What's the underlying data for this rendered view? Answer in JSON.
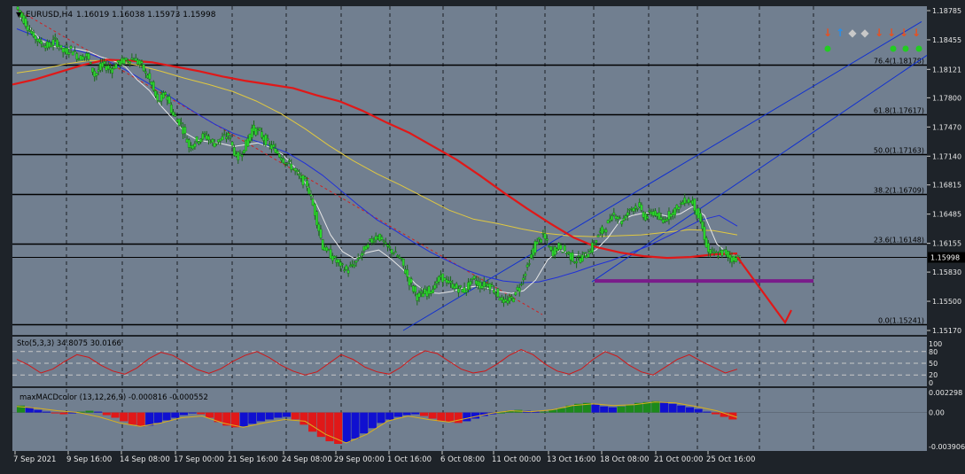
{
  "header": {
    "symbol_label": "EURUSD,H4",
    "ohlc": "1.16019 1.16038 1.15973 1.15998"
  },
  "colors": {
    "background": "#717f90",
    "candle_body": "#2bd92b",
    "ma_fast": "#e8e8e8",
    "ma_mid": "#2030d8",
    "ma_yellow": "#e0c840",
    "ma_slow": "#e01818",
    "channel": "#1030d0",
    "support": "#7a1c8a",
    "arrow": "#e01818"
  },
  "price_axis": {
    "ticks": [
      "1.18785",
      "1.18455",
      "1.18121",
      "1.17800",
      "1.17470",
      "1.17140",
      "1.16815",
      "1.16485",
      "1.16155",
      "1.15830",
      "1.15500",
      "1.15170"
    ],
    "current_price": "1.15998"
  },
  "fibonacci": [
    {
      "label": "76.4(1.18178)"
    },
    {
      "label": "61.8(1.17617)"
    },
    {
      "label": "50.0(1.17163)"
    },
    {
      "label": "38.2(1.16709)"
    },
    {
      "label": "23.6(1.16148)"
    },
    {
      "label": "0.0(1.15241)"
    }
  ],
  "time_axis": {
    "labels": [
      "7 Sep 2021",
      "9 Sep 16:00",
      "14 Sep 08:00",
      "17 Sep 00:00",
      "21 Sep 16:00",
      "24 Sep 08:00",
      "29 Sep 00:00",
      "1 Oct 16:00",
      "6 Oct 08:00",
      "11 Oct 00:00",
      "13 Oct 16:00",
      "18 Oct 08:00",
      "21 Oct 00:00",
      "25 Oct 16:00"
    ]
  },
  "stochastic": {
    "label": "Sto(5,3,3) 34.8075 30.0166",
    "ticks": [
      "100",
      "80",
      "50",
      "20",
      "0"
    ]
  },
  "macd": {
    "label": "maxMACDcolor (13,12,26,9) -0.000816 -0.000552",
    "ticks": [
      "0.002298",
      "0.00",
      "-0.003906"
    ]
  },
  "chart_data": [
    {
      "type": "candlestick",
      "title": "EURUSD,H4",
      "ohlc_last": {
        "open": 1.16019,
        "high": 1.16038,
        "low": 1.15973,
        "close": 1.15998
      },
      "ylim": [
        1.1517,
        1.18785
      ],
      "x_labels": [
        "7 Sep 2021",
        "9 Sep 16:00",
        "14 Sep 08:00",
        "17 Sep 00:00",
        "21 Sep 16:00",
        "24 Sep 08:00",
        "29 Sep 00:00",
        "1 Oct 16:00",
        "6 Oct 08:00",
        "11 Oct 00:00",
        "13 Oct 16:00",
        "18 Oct 08:00",
        "21 Oct 00:00",
        "25 Oct 16:00"
      ],
      "close_path": [
        1.1883,
        1.1868,
        1.1852,
        1.1843,
        1.1838,
        1.1845,
        1.1832,
        1.1835,
        1.1825,
        1.1828,
        1.1805,
        1.1818,
        1.1812,
        1.182,
        1.1822,
        1.1825,
        1.1815,
        1.18,
        1.1775,
        1.1785,
        1.176,
        1.175,
        1.1725,
        1.1732,
        1.1738,
        1.1728,
        1.1733,
        1.1738,
        1.1712,
        1.1722,
        1.1745,
        1.174,
        1.1728,
        1.172,
        1.171,
        1.1702,
        1.169,
        1.1682,
        1.165,
        1.1612,
        1.1602,
        1.1592,
        1.1585,
        1.1592,
        1.1605,
        1.1618,
        1.1625,
        1.1612,
        1.1605,
        1.1595,
        1.1572,
        1.1555,
        1.156,
        1.1565,
        1.1578,
        1.157,
        1.1565,
        1.1562,
        1.1575,
        1.1568,
        1.157,
        1.156,
        1.1548,
        1.1553,
        1.1568,
        1.159,
        1.1615,
        1.1625,
        1.1605,
        1.1612,
        1.1605,
        1.1596,
        1.16,
        1.1608,
        1.1625,
        1.1635,
        1.165,
        1.164,
        1.1655,
        1.1658,
        1.1645,
        1.1652,
        1.164,
        1.1648,
        1.1655,
        1.1665,
        1.1662,
        1.164,
        1.1605,
        1.1603,
        1.1606,
        1.1598,
        1.16
      ],
      "indicators": {
        "ma_fast": [
          1.1875,
          1.186,
          1.1845,
          1.1838,
          1.1836,
          1.1835,
          1.1832,
          1.1826,
          1.1822,
          1.1815,
          1.18,
          1.1788,
          1.177,
          1.1755,
          1.174,
          1.1732,
          1.173,
          1.1728,
          1.1725,
          1.1727,
          1.1729,
          1.1724,
          1.1716,
          1.1702,
          1.1682,
          1.1655,
          1.1625,
          1.1606,
          1.1598,
          1.1605,
          1.1608,
          1.1598,
          1.1586,
          1.157,
          1.156,
          1.1559,
          1.1561,
          1.1565,
          1.1567,
          1.1565,
          1.1561,
          1.1559,
          1.1562,
          1.1574,
          1.1597,
          1.1608,
          1.1603,
          1.1602,
          1.1608,
          1.1622,
          1.1641,
          1.1647,
          1.165,
          1.1649,
          1.1646,
          1.1649,
          1.1657,
          1.1647,
          1.1615,
          1.1603,
          1.16
        ],
        "ma_mid": [
          1.1858,
          1.185,
          1.1842,
          1.1835,
          1.183,
          1.1822,
          1.1812,
          1.18,
          1.1788,
          1.1775,
          1.1762,
          1.175,
          1.174,
          1.1733,
          1.1726,
          1.1718,
          1.1706,
          1.1692,
          1.1675,
          1.1658,
          1.1642,
          1.163,
          1.1617,
          1.1605,
          1.1595,
          1.1585,
          1.1578,
          1.1573,
          1.1571,
          1.1572,
          1.1577,
          1.1583,
          1.159,
          1.1596,
          1.1604,
          1.1612,
          1.1622,
          1.1632,
          1.1642,
          1.1647,
          1.1635
        ],
        "ma_yellow": [
          1.1808,
          1.1812,
          1.1818,
          1.1822,
          1.1822,
          1.1817,
          1.181,
          1.1802,
          1.1795,
          1.1787,
          1.1776,
          1.1762,
          1.1745,
          1.1726,
          1.1709,
          1.1694,
          1.1681,
          1.1667,
          1.1653,
          1.1643,
          1.1638,
          1.1632,
          1.1627,
          1.1624,
          1.1623,
          1.1624,
          1.1625,
          1.1628,
          1.1631,
          1.163,
          1.1625
        ],
        "ma_slow": [
          1.1795,
          1.1801,
          1.1809,
          1.1817,
          1.1823,
          1.1822,
          1.182,
          1.1815,
          1.181,
          1.1804,
          1.1799,
          1.1795,
          1.1791,
          1.1783,
          1.1776,
          1.1765,
          1.1752,
          1.174,
          1.1725,
          1.171,
          1.1692,
          1.1673,
          1.1655,
          1.1638,
          1.1622,
          1.1611,
          1.1605,
          1.1601,
          1.1599,
          1.16,
          1.1603,
          1.1604
        ]
      },
      "fibonacci_levels": [
        {
          "level": 76.4,
          "price": 1.18178
        },
        {
          "level": 61.8,
          "price": 1.17617
        },
        {
          "level": 50.0,
          "price": 1.17163
        },
        {
          "level": 38.2,
          "price": 1.16709
        },
        {
          "level": 23.6,
          "price": 1.16148
        },
        {
          "level": 0.0,
          "price": 1.15241
        }
      ],
      "support_level": 1.1573,
      "current_price": 1.15998
    },
    {
      "type": "line",
      "title": "Sto(5,3,3) 34.8075 30.0166",
      "ylim": [
        0,
        100
      ],
      "levels": [
        80,
        50,
        20
      ],
      "series": [
        {
          "name": "Sto(5,3,3)",
          "values": [
            60,
            45,
            25,
            35,
            55,
            72,
            65,
            45,
            30,
            22,
            38,
            62,
            78,
            70,
            52,
            34,
            24,
            36,
            55,
            70,
            80,
            65,
            45,
            30,
            20,
            28,
            50,
            72,
            60,
            40,
            28,
            22,
            40,
            65,
            82,
            75,
            55,
            35,
            25,
            30,
            48,
            70,
            85,
            72,
            48,
            30,
            22,
            35,
            60,
            80,
            68,
            45,
            28,
            20,
            40,
            60,
            72,
            55,
            40,
            25,
            34.8075
          ]
        }
      ]
    },
    {
      "type": "bar",
      "title": "maxMACDcolor (13,12,26,9) -0.000816 -0.000552",
      "ylim": [
        -0.003906,
        0.002298
      ],
      "series": [
        {
          "name": "maxMACDcolor",
          "values": [
            0.0008,
            0.0006,
            0.0003,
            0.0001,
            -0.0001,
            -0.0002,
            -0.0001,
            0.0001,
            0.0002,
            0.0001,
            -0.0003,
            -0.0006,
            -0.001,
            -0.0014,
            -0.0016,
            -0.0015,
            -0.0012,
            -0.0009,
            -0.0006,
            -0.0003,
            -0.0001,
            -0.0002,
            -0.0006,
            -0.0011,
            -0.0015,
            -0.0017,
            -0.0016,
            -0.0013,
            -0.001,
            -0.0008,
            -0.0006,
            -0.0005,
            -0.0008,
            -0.0014,
            -0.0022,
            -0.0028,
            -0.0033,
            -0.0036,
            -0.0034,
            -0.003,
            -0.0024,
            -0.0018,
            -0.0012,
            -0.0008,
            -0.0005,
            -0.0003,
            -0.0002,
            -0.0004,
            -0.0007,
            -0.001,
            -0.0011,
            -0.0012,
            -0.001,
            -0.0007,
            -0.0004,
            -0.0002,
            0.0,
            0.0002,
            0.0003,
            0.0002,
            0.0001,
            0.0001,
            0.0003,
            0.0005,
            0.0008,
            0.001,
            0.0011,
            0.0009,
            0.0007,
            0.0006,
            0.0007,
            0.0009,
            0.0011,
            0.0012,
            0.0013,
            0.0012,
            0.001,
            0.0008,
            0.0006,
            0.0004,
            0.0001,
            -0.0002,
            -0.0005,
            -0.0008
          ]
        },
        {
          "name": "signal",
          "values": [
            0.0007,
            0.0005,
            0.0002,
            0.0,
            -0.0005,
            -0.0012,
            -0.0016,
            -0.0012,
            -0.0006,
            -0.0004,
            -0.0012,
            -0.0017,
            -0.0012,
            -0.0008,
            -0.001,
            -0.0025,
            -0.0035,
            -0.0025,
            -0.001,
            -0.0004,
            -0.0008,
            -0.0011,
            -0.0006,
            -0.0001,
            0.0002,
            0.0001,
            0.0003,
            0.0008,
            0.001,
            0.0008,
            0.0009,
            0.0012,
            0.0011,
            0.0007,
            0.0002,
            -0.000552
          ]
        }
      ]
    }
  ]
}
